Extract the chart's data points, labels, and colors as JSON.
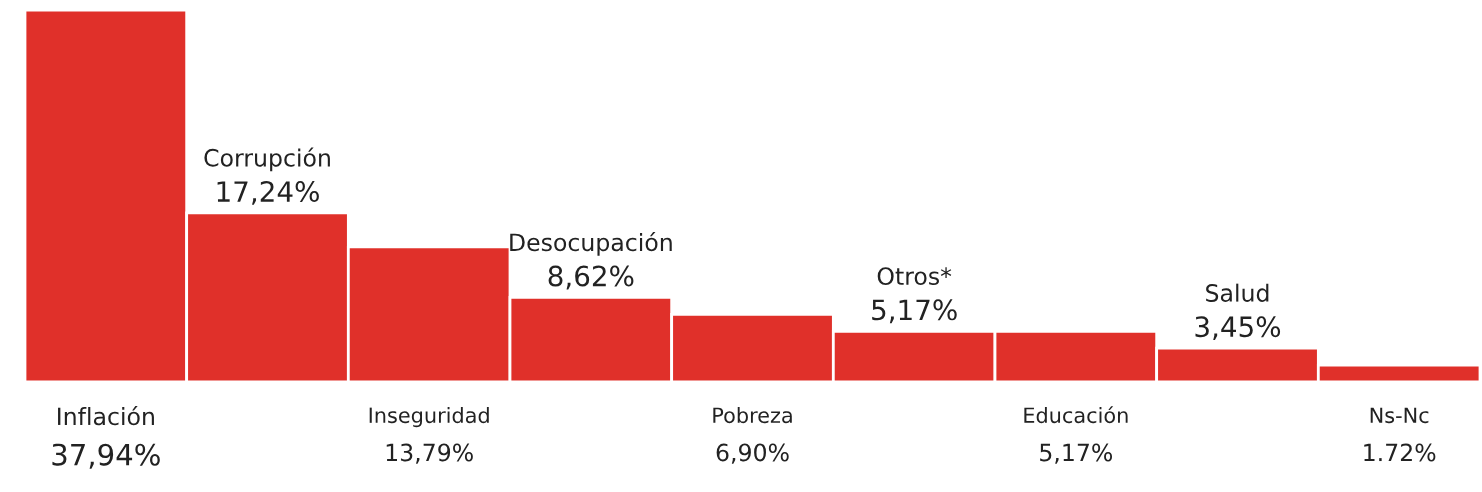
{
  "chart_data": {
    "type": "bar",
    "categories": [
      "Inflación",
      "Corrupción",
      "Inseguridad",
      "Desocupación",
      "Pobreza",
      "Otros*",
      "Educación",
      "Salud",
      "Ns-Nc"
    ],
    "values": [
      37.94,
      17.24,
      13.79,
      8.62,
      6.9,
      5.17,
      5.17,
      3.45,
      1.72
    ],
    "value_labels": [
      "37,94%",
      "17,24%",
      "13,79%",
      "8,62%",
      "6,90%",
      "5,17%",
      "5,17%",
      "3,45%",
      "1.72%"
    ],
    "color": "#e0302a"
  }
}
